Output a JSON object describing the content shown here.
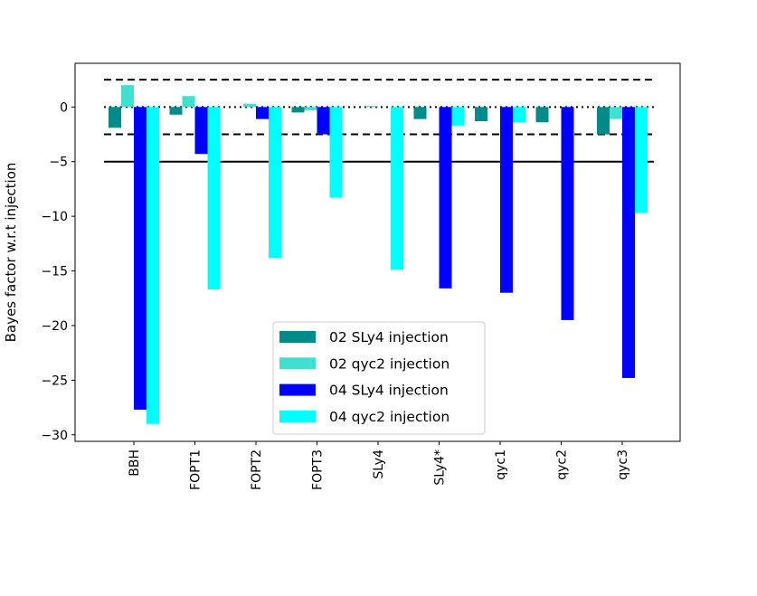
{
  "chart_data": {
    "type": "bar",
    "title": "",
    "xlabel": "",
    "ylabel": "Bayes factor w.r.t injection",
    "ylim": [
      -30.6,
      4.0
    ],
    "yticks": [
      0,
      -5,
      -10,
      -15,
      -20,
      -25,
      -30
    ],
    "ytick_labels": [
      "0",
      "−5",
      "−10",
      "−15",
      "−20",
      "−25",
      "−30"
    ],
    "categories": [
      "BBH",
      "FOPT1",
      "FOPT2",
      "FOPT3",
      "SLy4",
      "SLy4*",
      "qyc1",
      "qyc2",
      "qyc3"
    ],
    "series": [
      {
        "name": "02 SLy4 injection",
        "color": "#008b8b",
        "values": [
          -1.9,
          -0.7,
          0.0,
          -0.5,
          0.0,
          -1.1,
          -1.3,
          -1.4,
          -2.5
        ]
      },
      {
        "name": "02 qyc2 injection",
        "color": "#40e0d0",
        "values": [
          2.0,
          1.0,
          0.3,
          -0.3,
          0.1,
          0.0,
          0.0,
          0.0,
          -1.1
        ]
      },
      {
        "name": "04 SLy4 injection",
        "color": "#0000ff",
        "values": [
          -27.7,
          -4.3,
          -1.1,
          -2.5,
          0.0,
          -16.6,
          -17.0,
          -19.5,
          -24.8
        ]
      },
      {
        "name": "04 qyc2 injection",
        "color": "#00ffff",
        "values": [
          -29.0,
          -16.7,
          -13.8,
          -8.3,
          -14.9,
          -1.7,
          -1.4,
          0.0,
          -9.7
        ]
      }
    ],
    "reference_lines": [
      {
        "y": 2.5,
        "style": "dashed"
      },
      {
        "y": 0,
        "style": "dotted"
      },
      {
        "y": -2.5,
        "style": "dashed"
      },
      {
        "y": -5,
        "style": "solid"
      }
    ],
    "legend_position": "lower-center",
    "grid": false
  }
}
